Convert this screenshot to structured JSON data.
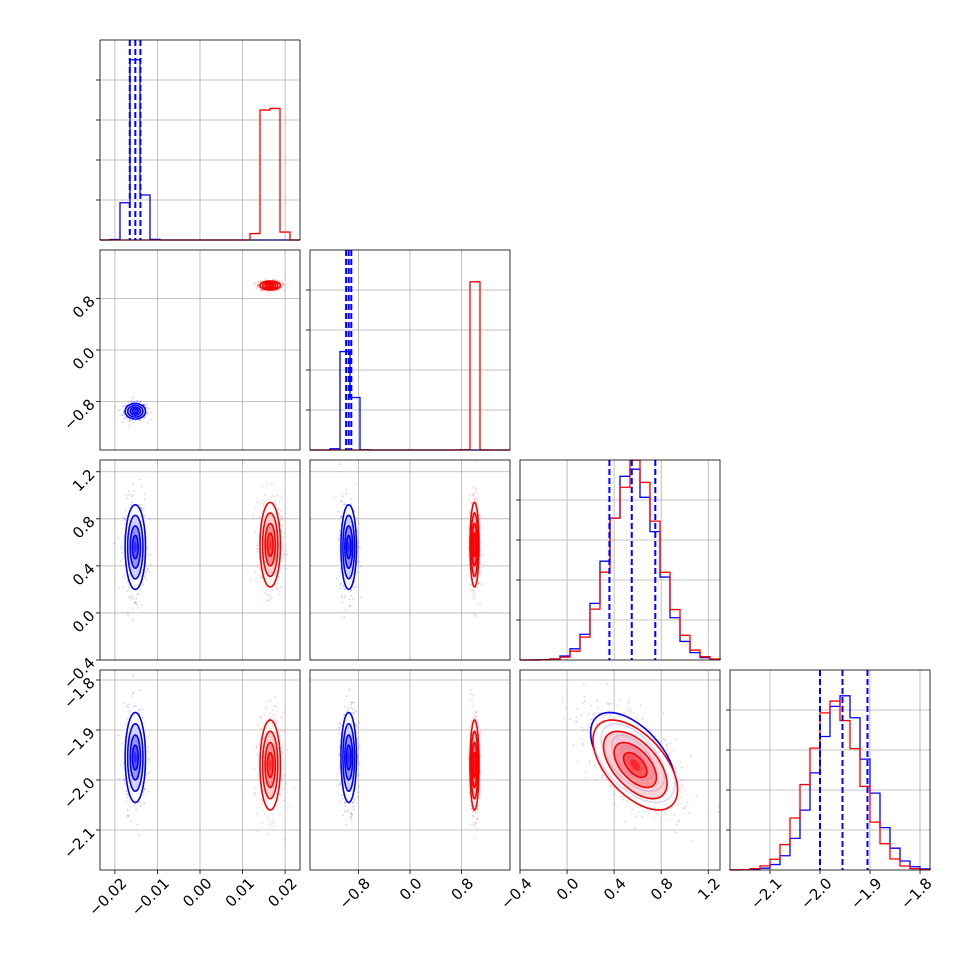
{
  "chart_data": {
    "type": "corner",
    "grid": true,
    "series": [
      {
        "color": "#0000ff",
        "means": [
          -0.0152,
          -0.95,
          0.56,
          -1.955
        ],
        "sds": [
          0.0012,
          0.06,
          0.18,
          0.045
        ],
        "rho_34": -0.55,
        "quantiles": [
          [
            -0.0165,
            -0.0152,
            -0.014
          ],
          [
            -0.99,
            -0.95,
            -0.91
          ],
          [
            0.36,
            0.55,
            0.75
          ],
          [
            -2.0,
            -1.955,
            -1.905
          ]
        ],
        "hist_peaks": [
          0.86,
          0.71,
          0.94,
          0.84
        ]
      },
      {
        "color": "#ff0000",
        "means": [
          0.0165,
          1.0,
          0.58,
          -1.97
        ],
        "sds": [
          0.0012,
          0.035,
          0.18,
          0.045
        ],
        "rho_34": -0.55,
        "hist_peaks": [
          0.92,
          0.86,
          0.97,
          0.82
        ]
      }
    ],
    "dims": [
      {
        "range": [
          -0.0235,
          0.0235
        ],
        "ticks": [
          -0.02,
          -0.01,
          0.0,
          0.01,
          0.02
        ],
        "tick_labels": [
          "−0.02",
          "−0.01",
          "0.00",
          "0.01",
          "0.02"
        ],
        "bins": 20
      },
      {
        "range": [
          -1.55,
          1.55
        ],
        "ticks": [
          -0.8,
          0.0,
          0.8
        ],
        "tick_labels": [
          "−0.8",
          "0.0",
          "0.8"
        ],
        "bins": 20
      },
      {
        "range": [
          -0.4,
          1.3
        ],
        "ticks": [
          -0.4,
          0.0,
          0.4,
          0.8,
          1.2
        ],
        "tick_labels": [
          "−0.4",
          "0.0",
          "0.4",
          "0.8",
          "1.2"
        ],
        "bins": 20
      },
      {
        "range": [
          -2.18,
          -1.78
        ],
        "ticks": [
          -2.1,
          -2.0,
          -1.9,
          -1.8
        ],
        "tick_labels": [
          "−2.1",
          "−2.0",
          "−1.9",
          "−1.8"
        ],
        "bins": 20
      }
    ]
  }
}
